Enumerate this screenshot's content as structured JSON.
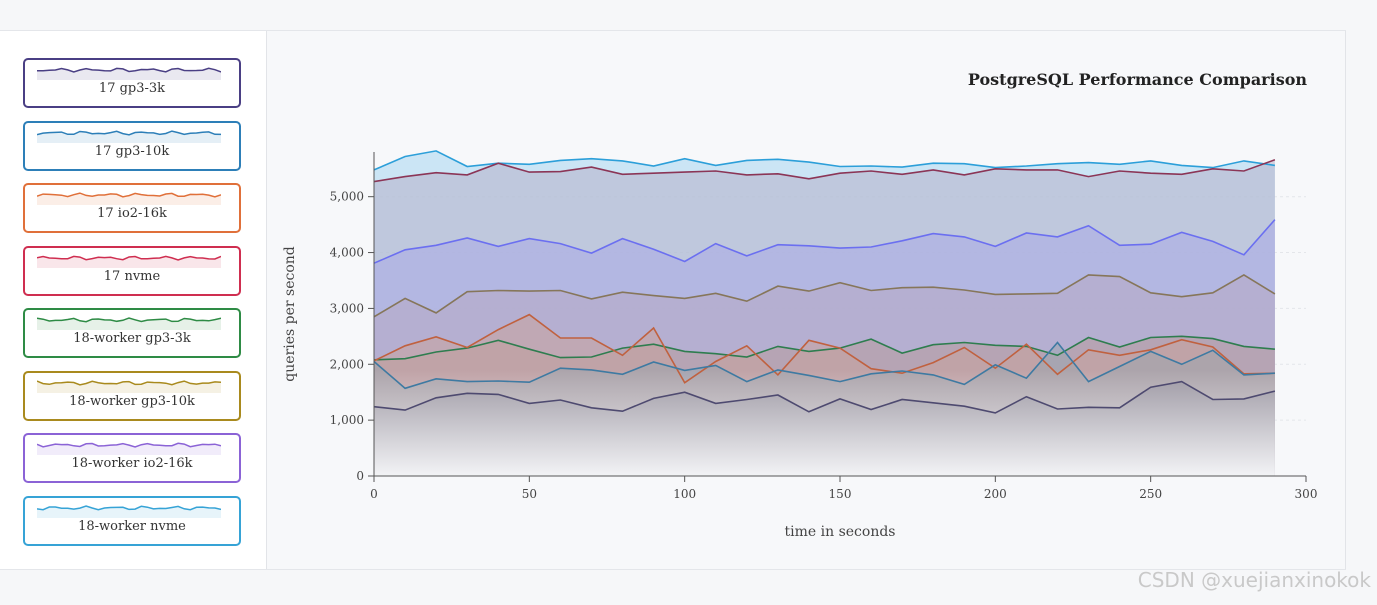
{
  "watermark": "CSDN @xuejianxinokok",
  "legend": [
    {
      "label": "17 gp3-3k",
      "color": "#4a3f84"
    },
    {
      "label": "17 gp3-10k",
      "color": "#2d7fb8"
    },
    {
      "label": "17 io2-16k",
      "color": "#e0703a"
    },
    {
      "label": "17 nvme",
      "color": "#cf2e50"
    },
    {
      "label": "18-worker gp3-3k",
      "color": "#2e8b45"
    },
    {
      "label": "18-worker gp3-10k",
      "color": "#a98a1e"
    },
    {
      "label": "18-worker io2-16k",
      "color": "#8b63d6"
    },
    {
      "label": "18-worker nvme",
      "color": "#36a3d6"
    }
  ],
  "chart_data": {
    "type": "area",
    "title": "PostgreSQL Performance Comparison",
    "xlabel": "time in seconds",
    "ylabel": "queries per second",
    "xlim": [
      0,
      300
    ],
    "ylim": [
      0,
      5800
    ],
    "xticks": [
      0,
      50,
      100,
      150,
      200,
      250,
      300
    ],
    "yticks": [
      0,
      1000,
      2000,
      3000,
      4000,
      5000
    ],
    "ytick_labels": [
      "0",
      "1,000",
      "2,000",
      "3,000",
      "4,000",
      "5,000"
    ],
    "grid": "horizontal dashed",
    "x": [
      0,
      10,
      20,
      30,
      40,
      50,
      60,
      70,
      80,
      90,
      100,
      110,
      120,
      130,
      140,
      150,
      160,
      170,
      180,
      190,
      200,
      210,
      220,
      230,
      240,
      250,
      260,
      270,
      280,
      290
    ],
    "series": [
      {
        "name": "18-worker nvme",
        "stroke": "#2c9fd9",
        "fill": "#a8d6f0",
        "values": [
          5480,
          5720,
          5820,
          5540,
          5600,
          5580,
          5650,
          5680,
          5640,
          5550,
          5680,
          5560,
          5650,
          5670,
          5620,
          5540,
          5550,
          5530,
          5600,
          5590,
          5520,
          5550,
          5590,
          5610,
          5580,
          5640,
          5560,
          5520,
          5640,
          5560
        ]
      },
      {
        "name": "17 nvme",
        "stroke": "#8b3556",
        "fill": "#b7b0c9",
        "values": [
          5270,
          5360,
          5430,
          5390,
          5600,
          5440,
          5450,
          5530,
          5400,
          5420,
          5440,
          5460,
          5390,
          5410,
          5320,
          5420,
          5460,
          5400,
          5480,
          5390,
          5500,
          5480,
          5480,
          5360,
          5460,
          5420,
          5400,
          5500,
          5460,
          5660
        ]
      },
      {
        "name": "18-worker io2-16k",
        "stroke": "#6b6ff0",
        "fill": "#aaa9e6",
        "values": [
          3810,
          4050,
          4130,
          4260,
          4110,
          4250,
          4160,
          3990,
          4250,
          4060,
          3840,
          4160,
          3940,
          4140,
          4120,
          4080,
          4100,
          4210,
          4340,
          4280,
          4110,
          4350,
          4280,
          4480,
          4130,
          4150,
          4360,
          4200,
          3960,
          4590
        ]
      },
      {
        "name": "18-worker gp3-10k",
        "stroke": "#86765a",
        "fill": "#b7a9c2",
        "values": [
          2850,
          3180,
          2920,
          3300,
          3320,
          3310,
          3320,
          3170,
          3290,
          3230,
          3180,
          3270,
          3130,
          3400,
          3310,
          3460,
          3320,
          3370,
          3380,
          3330,
          3250,
          3260,
          3270,
          3600,
          3570,
          3280,
          3210,
          3280,
          3600,
          3260
        ]
      },
      {
        "name": "18-worker gp3-3k",
        "stroke": "#2e7d4f",
        "fill": "#b79a9c",
        "values": [
          2080,
          2100,
          2220,
          2290,
          2430,
          2270,
          2120,
          2130,
          2290,
          2360,
          2230,
          2190,
          2130,
          2320,
          2230,
          2290,
          2450,
          2200,
          2350,
          2390,
          2340,
          2320,
          2160,
          2480,
          2310,
          2480,
          2500,
          2460,
          2320,
          2270
        ]
      },
      {
        "name": "17 io2-16k",
        "stroke": "#c0613f",
        "fill": "#c9a39d",
        "values": [
          2060,
          2330,
          2490,
          2300,
          2620,
          2890,
          2470,
          2470,
          2160,
          2650,
          1670,
          2050,
          2330,
          1810,
          2430,
          2290,
          1920,
          1840,
          2030,
          2300,
          1930,
          2360,
          1820,
          2260,
          2160,
          2260,
          2440,
          2310,
          1830,
          1840
        ]
      },
      {
        "name": "17 gp3-10k",
        "stroke": "#3e7aa2",
        "fill": "#9aa6ae",
        "values": [
          2050,
          1570,
          1740,
          1690,
          1700,
          1680,
          1930,
          1900,
          1820,
          2040,
          1890,
          1980,
          1690,
          1900,
          1800,
          1690,
          1830,
          1880,
          1810,
          1640,
          1990,
          1750,
          2390,
          1690,
          1960,
          2230,
          2000,
          2250,
          1810,
          1840
        ]
      },
      {
        "name": "17 gp3-3k",
        "stroke": "#4e4a70",
        "fill": "#8e8a99",
        "values": [
          1240,
          1180,
          1400,
          1480,
          1460,
          1300,
          1360,
          1220,
          1160,
          1390,
          1500,
          1300,
          1370,
          1450,
          1150,
          1380,
          1190,
          1370,
          1310,
          1250,
          1130,
          1420,
          1200,
          1230,
          1220,
          1590,
          1690,
          1370,
          1380,
          1520
        ]
      }
    ]
  }
}
